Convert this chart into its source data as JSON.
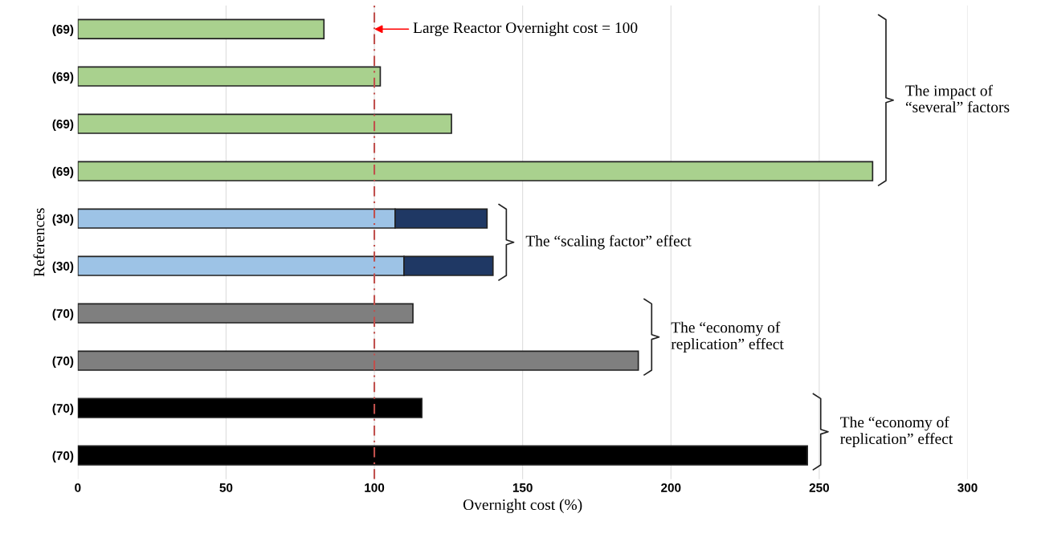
{
  "chart_data": {
    "type": "bar",
    "orientation": "horizontal",
    "stacked": true,
    "categories": [
      "(69)",
      "(69)",
      "(69)",
      "(69)",
      "(30)",
      "(30)",
      "(70)",
      "(70)",
      "(70)",
      "(70)"
    ],
    "series": [
      {
        "colors": [
          "#a9d18e",
          "#a9d18e",
          "#a9d18e",
          "#a9d18e",
          "#9dc3e6",
          "#9dc3e6",
          "#7f7f7f",
          "#7f7f7f",
          "#000000",
          "#000000"
        ],
        "values": [
          83,
          102,
          126,
          268,
          107,
          110,
          113,
          189,
          116,
          246
        ]
      },
      {
        "color": "#1f3864",
        "values": [
          null,
          null,
          null,
          null,
          31,
          30,
          null,
          null,
          null,
          null
        ]
      }
    ],
    "xlabel": "Overnight cost (%)",
    "ylabel": "References",
    "xlim": [
      0,
      300
    ],
    "xticks": [
      0,
      50,
      100,
      150,
      200,
      250,
      300
    ],
    "grid": "x",
    "ref_lines": [
      {
        "axis": "x",
        "value": 100,
        "label": "Large Reactor Overnight cost = 100",
        "color": "#c0504d",
        "line_style": "dashed"
      }
    ],
    "annotations": [
      "The impact of\n“several” factors",
      "The “scaling factor” effect",
      "The “economy of\nreplication” effect",
      "The “economy of\nreplication” effect"
    ]
  }
}
